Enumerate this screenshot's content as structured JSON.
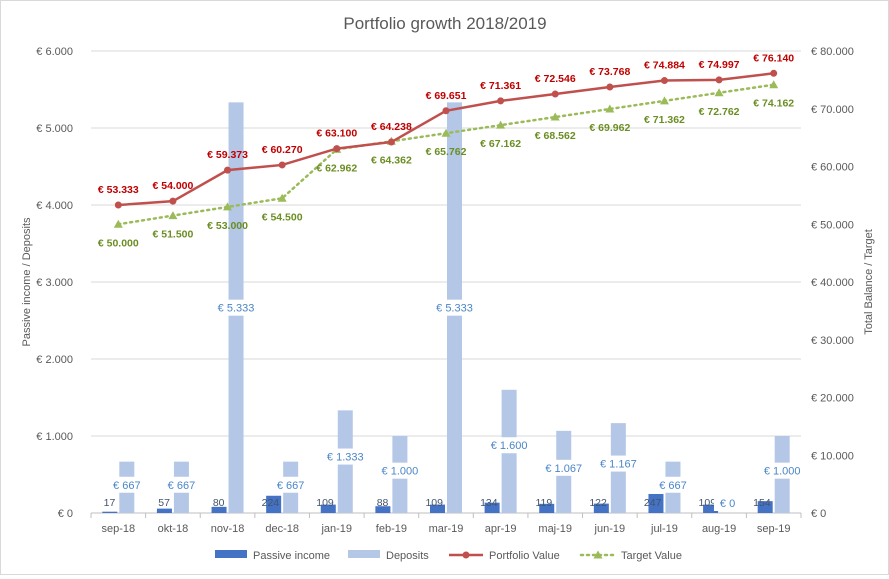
{
  "chart_data": {
    "type": "bar",
    "title": "Portfolio growth 2018/2019",
    "categories": [
      "sep-18",
      "okt-18",
      "nov-18",
      "dec-18",
      "jan-19",
      "feb-19",
      "mar-19",
      "apr-19",
      "maj-19",
      "jun-19",
      "jul-19",
      "aug-19",
      "sep-19"
    ],
    "y_left": {
      "label": "Passive income / Deposits",
      "ylim": [
        0,
        6000
      ],
      "ticks": [
        0,
        1000,
        2000,
        3000,
        4000,
        5000,
        6000
      ],
      "tick_labels": [
        "€ 0",
        "€ 1.000",
        "€ 2.000",
        "€ 3.000",
        "€ 4.000",
        "€ 5.000",
        "€ 6.000"
      ]
    },
    "y_right": {
      "label": "Total Balance / Target",
      "ylim": [
        0,
        80000
      ],
      "ticks": [
        0,
        10000,
        20000,
        30000,
        40000,
        50000,
        60000,
        70000,
        80000
      ],
      "tick_labels": [
        "€ 0",
        "€ 10.000",
        "€ 20.000",
        "€ 30.000",
        "€ 40.000",
        "€ 50.000",
        "€ 60.000",
        "€ 70.000",
        "€ 80.000"
      ]
    },
    "grid": true,
    "legend_position": "bottom",
    "series": [
      {
        "name": "Passive income",
        "kind": "bar",
        "axis": "left",
        "color": "#4472c4",
        "label_color": "#44546a",
        "values": [
          17,
          57,
          80,
          224,
          109,
          88,
          109,
          134,
          119,
          122,
          247,
          109,
          154
        ],
        "labels": [
          "17",
          "57",
          "80",
          "224",
          "109",
          "88",
          "109",
          "134",
          "119",
          "122",
          "247",
          "109",
          "154"
        ]
      },
      {
        "name": "Deposits",
        "kind": "bar",
        "axis": "left",
        "color": "#b4c7e7",
        "label_color": "#4a86c8",
        "values": [
          667,
          667,
          5333,
          667,
          1333,
          1000,
          5333,
          1600,
          1067,
          1167,
          667,
          0,
          1000
        ],
        "labels": [
          "€ 667",
          "€ 667",
          "€ 5.333",
          "€ 667",
          "€ 1.333",
          "€ 1.000",
          "€ 5.333",
          "€ 1.600",
          "€ 1.067",
          "€ 1.167",
          "€ 667",
          "€ 0",
          "€ 1.000"
        ]
      },
      {
        "name": "Portfolio Value",
        "kind": "line",
        "axis": "right",
        "color": "#c0504d",
        "label_color": "#c00000",
        "values": [
          53333,
          54000,
          59373,
          60270,
          63100,
          64238,
          69651,
          71361,
          72546,
          73768,
          74884,
          74997,
          76140
        ],
        "labels": [
          "€ 53.333",
          "€ 54.000",
          "€ 59.373",
          "€ 60.270",
          "€ 63.100",
          "€ 64.238",
          "€ 69.651",
          "€ 71.361",
          "€ 72.546",
          "€ 73.768",
          "€ 74.884",
          "€ 74.997",
          "€ 76.140"
        ]
      },
      {
        "name": "Target Value",
        "kind": "dotted-line",
        "axis": "right",
        "color": "#9bbb59",
        "label_color": "#6b8e23",
        "values": [
          50000,
          51500,
          53000,
          54500,
          62962,
          64362,
          65762,
          67162,
          68562,
          69962,
          71362,
          72762,
          74162
        ],
        "labels": [
          "€ 50.000",
          "€ 51.500",
          "€ 53.000",
          "€ 54.500",
          "€ 62.962",
          "€ 64.362",
          "€ 65.762",
          "€ 67.162",
          "€ 68.562",
          "€ 69.962",
          "€ 71.362",
          "€ 72.762",
          "€ 74.162"
        ]
      }
    ]
  }
}
